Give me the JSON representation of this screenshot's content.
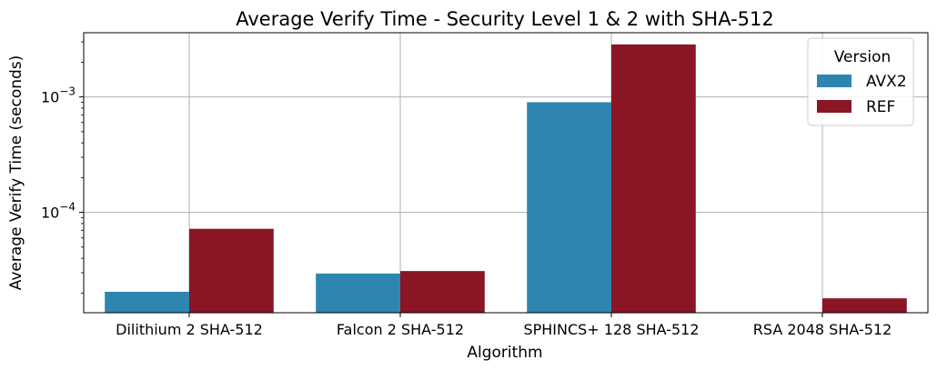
{
  "chart_data": {
    "type": "bar",
    "title": "Average Verify Time - Security Level 1 & 2 with SHA-512",
    "xlabel": "Algorithm",
    "ylabel": "Average Verify Time (seconds)",
    "yscale": "log",
    "ylim": [
      1.35e-05,
      0.0036
    ],
    "grid": true,
    "legend": {
      "title": "Version",
      "placement": "top-right"
    },
    "categories": [
      "Dilithium 2 SHA-512",
      "Falcon 2 SHA-512",
      "SPHINCS+ 128 SHA-512",
      "RSA 2048 SHA-512"
    ],
    "series": [
      {
        "name": "AVX2",
        "color": "#2e86b0",
        "values": [
          2.05e-05,
          2.95e-05,
          0.0009,
          null
        ]
      },
      {
        "name": "REF",
        "color": "#8a1524",
        "values": [
          7.2e-05,
          3.1e-05,
          0.00285,
          1.8e-05
        ]
      }
    ],
    "y_major_ticks": [
      {
        "value": 0.0001,
        "base": "10",
        "exp": "−4"
      },
      {
        "value": 0.001,
        "base": "10",
        "exp": "−3"
      }
    ]
  }
}
